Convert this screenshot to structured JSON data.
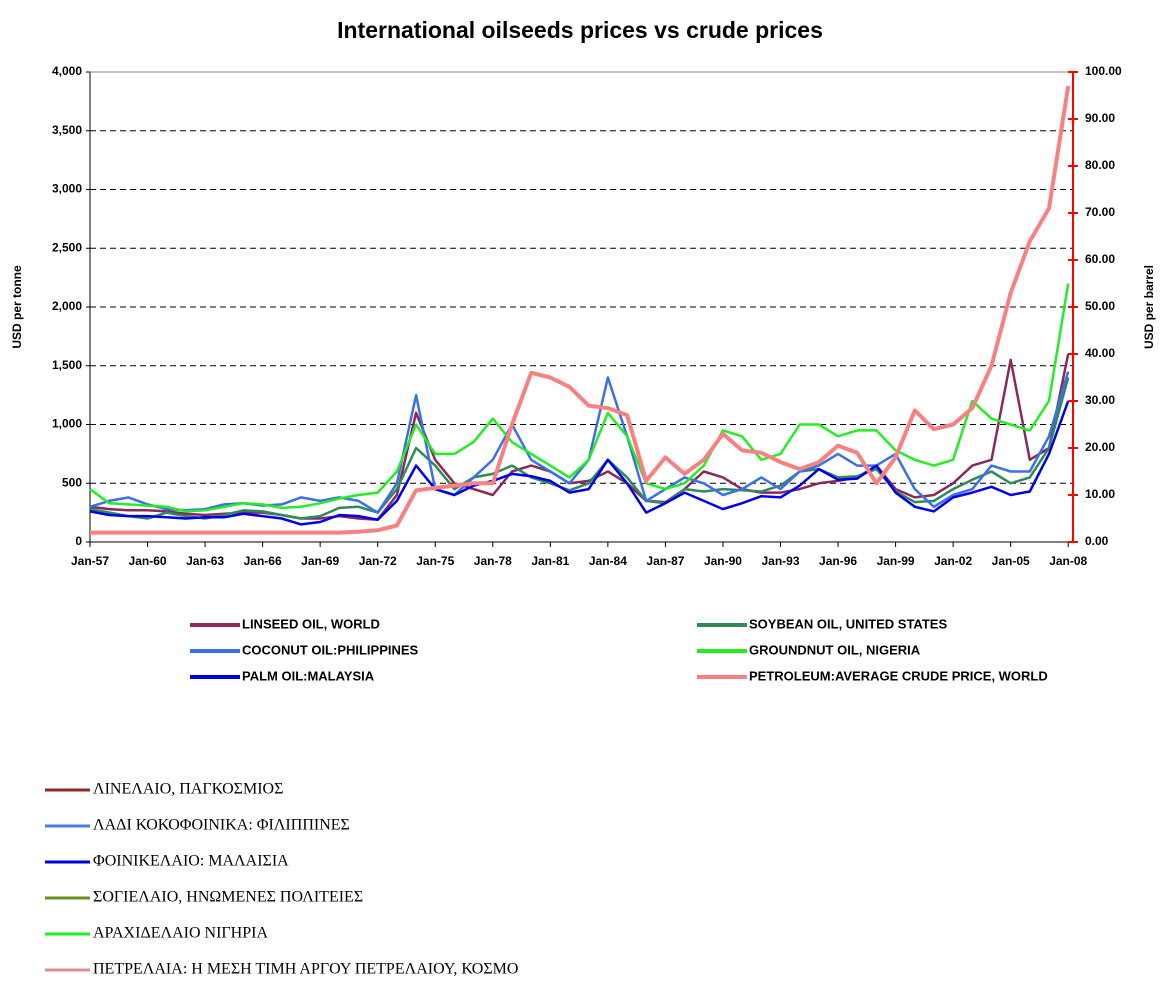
{
  "chart_data": {
    "type": "line",
    "title": "International oilseeds prices vs crude prices",
    "y_label": "USD per tonne",
    "y2_label": "USD per barrel",
    "xlim": [
      1957,
      2008.25
    ],
    "xticks": [
      {
        "value": 1957,
        "label": "Jan-57"
      },
      {
        "value": 1960,
        "label": "Jan-60"
      },
      {
        "value": 1963,
        "label": "Jan-63"
      },
      {
        "value": 1966,
        "label": "Jan-66"
      },
      {
        "value": 1969,
        "label": "Jan-69"
      },
      {
        "value": 1972,
        "label": "Jan-72"
      },
      {
        "value": 1975,
        "label": "Jan-75"
      },
      {
        "value": 1978,
        "label": "Jan-78"
      },
      {
        "value": 1981,
        "label": "Jan-81"
      },
      {
        "value": 1984,
        "label": "Jan-84"
      },
      {
        "value": 1987,
        "label": "Jan-87"
      },
      {
        "value": 1990,
        "label": "Jan-90"
      },
      {
        "value": 1993,
        "label": "Jan-93"
      },
      {
        "value": 1996,
        "label": "Jan-96"
      },
      {
        "value": 1999,
        "label": "Jan-99"
      },
      {
        "value": 2002,
        "label": "Jan-02"
      },
      {
        "value": 2005,
        "label": "Jan-05"
      },
      {
        "value": 2008,
        "label": "Jan-08"
      }
    ],
    "ylim": [
      0,
      4000
    ],
    "yticks": [
      0,
      500,
      {
        "value": 1000,
        "label": "1,000"
      },
      {
        "value": 1500,
        "label": "1,500"
      },
      {
        "value": 2000,
        "label": "2,000"
      },
      {
        "value": 2500,
        "label": "2,500"
      },
      {
        "value": 3000,
        "label": "3,000"
      },
      {
        "value": 3500,
        "label": "3,500"
      },
      {
        "value": 4000,
        "label": "4,000"
      }
    ],
    "y2lim": [
      0,
      100
    ],
    "y2ticks": [
      {
        "value": 0,
        "label": "0.00"
      },
      {
        "value": 10,
        "label": "10.00"
      },
      {
        "value": 20,
        "label": "20.00"
      },
      {
        "value": 30,
        "label": "30.00"
      },
      {
        "value": 40,
        "label": "40.00"
      },
      {
        "value": 50,
        "label": "50.00"
      },
      {
        "value": 60,
        "label": "60.00"
      },
      {
        "value": 70,
        "label": "70.00"
      },
      {
        "value": 80,
        "label": "80.00"
      },
      {
        "value": 90,
        "label": "90.00"
      },
      {
        "value": 100,
        "label": "100.00"
      }
    ],
    "y2_color": "#ff0000",
    "grid": true,
    "x": [
      1957,
      1958,
      1959,
      1960,
      1961,
      1962,
      1963,
      1964,
      1965,
      1966,
      1967,
      1968,
      1969,
      1970,
      1971,
      1972,
      1973,
      1974,
      1975,
      1976,
      1977,
      1978,
      1979,
      1980,
      1981,
      1982,
      1983,
      1984,
      1985,
      1986,
      1987,
      1988,
      1989,
      1990,
      1991,
      1992,
      1993,
      1994,
      1995,
      1996,
      1997,
      1998,
      1999,
      2000,
      2001,
      2002,
      2003,
      2004,
      2005,
      2006,
      2007,
      2008
    ],
    "series": [
      {
        "name": "LINSEED OIL, WORLD",
        "color": "#8b2a5a",
        "values": [
          300,
          280,
          270,
          270,
          260,
          240,
          230,
          240,
          250,
          250,
          230,
          200,
          200,
          220,
          200,
          190,
          400,
          1100,
          700,
          500,
          450,
          400,
          600,
          650,
          600,
          500,
          520,
          600,
          500,
          350,
          340,
          450,
          600,
          550,
          450,
          420,
          420,
          450,
          500,
          520,
          550,
          650,
          450,
          380,
          400,
          500,
          650,
          700,
          1550,
          700,
          800,
          1600
        ]
      },
      {
        "name": "SOYBEAN OIL, UNITED STATES",
        "color": "#2e8b57",
        "values": [
          280,
          250,
          220,
          200,
          250,
          220,
          200,
          230,
          270,
          260,
          230,
          200,
          220,
          290,
          300,
          250,
          450,
          800,
          650,
          450,
          550,
          580,
          650,
          550,
          500,
          440,
          500,
          700,
          550,
          350,
          330,
          450,
          430,
          450,
          440,
          430,
          480,
          600,
          620,
          550,
          560,
          620,
          430,
          340,
          350,
          450,
          530,
          600,
          500,
          550,
          800,
          1400
        ]
      },
      {
        "name": "COCONUT OIL:PHILIPPINES",
        "color": "#3d6fe8",
        "values": [
          300,
          350,
          380,
          320,
          280,
          270,
          280,
          320,
          330,
          310,
          320,
          380,
          350,
          380,
          350,
          250,
          500,
          1250,
          450,
          400,
          550,
          700,
          1000,
          700,
          600,
          500,
          700,
          1400,
          900,
          350,
          450,
          550,
          500,
          400,
          450,
          550,
          450,
          600,
          650,
          750,
          650,
          650,
          750,
          450,
          300,
          400,
          450,
          650,
          600,
          600,
          900,
          1450
        ]
      },
      {
        "name": "GROUNDNUT OIL, NIGERIA",
        "color": "#22ee22",
        "values": [
          450,
          330,
          320,
          310,
          300,
          260,
          270,
          300,
          330,
          320,
          290,
          300,
          330,
          370,
          400,
          420,
          600,
          1000,
          750,
          750,
          850,
          1050,
          850,
          750,
          650,
          550,
          700,
          1100,
          900,
          500,
          450,
          500,
          650,
          950,
          900,
          700,
          750,
          1000,
          1000,
          900,
          950,
          950,
          780,
          700,
          650,
          700,
          1200,
          1050,
          1000,
          950,
          1200,
          2200
        ]
      },
      {
        "name": "PALM OIL:MALAYSIA",
        "color": "#0000ee",
        "values": [
          260,
          230,
          220,
          220,
          210,
          200,
          210,
          210,
          240,
          220,
          200,
          150,
          170,
          230,
          220,
          190,
          350,
          650,
          450,
          400,
          480,
          520,
          580,
          560,
          520,
          420,
          450,
          700,
          500,
          250,
          330,
          420,
          350,
          280,
          330,
          390,
          380,
          480,
          620,
          530,
          540,
          650,
          420,
          300,
          260,
          380,
          420,
          470,
          400,
          430,
          750,
          1200
        ]
      },
      {
        "name": "PETROLEUM:AVERAGE CRUDE PRICE, WORLD",
        "color": "#f88080",
        "axis": "y2",
        "values": [
          2,
          2,
          2,
          2,
          2,
          2,
          2,
          2,
          2,
          2,
          2,
          2,
          2,
          2,
          2.2,
          2.5,
          3.5,
          11,
          11.5,
          12,
          12.5,
          12.5,
          25,
          36,
          35,
          33,
          29,
          28.5,
          27,
          13,
          18,
          14.5,
          17.5,
          23,
          19.5,
          19,
          17,
          15.5,
          17,
          20.5,
          19,
          12.5,
          18,
          28,
          24,
          25,
          28.5,
          37.5,
          53,
          64,
          71,
          97
        ]
      }
    ]
  },
  "notes_legend": [
    {
      "label": "ΛΙΝΕΛΑΙΟ, ΠΑΓΚΟΣΜΙΟΣ",
      "color": "#8b2a2a"
    },
    {
      "label": "ΛΑΔΙ ΚΟΚΟΦΟΙΝΙΚΑ: ΦΙΛΙΠΠΙΝΕΣ",
      "color": "#4a7fd8"
    },
    {
      "label": "ΦΟΙΝΙΚΕΛΑΙΟ: ΜΑΛΑΙΣΙΑ",
      "color": "#0000dd"
    },
    {
      "label": "ΣΟΓΙΕΛΑΙΟ, ΗΝΩΜΕΝΕΣ ΠΟΛΙΤΕΙΕΣ",
      "color": "#6b8e23"
    },
    {
      "label": "ΑΡΑΧΙΔΕΛΑΙΟ ΝΙΓΗΡΙΑ",
      "color": "#22ee22"
    },
    {
      "label": "ΠΕΤΡΕΛΑΙΑ: Η ΜΕΣΗ ΤΙΜΗ ΑΡΓΟΥ ΠΕΤΡΕΛΑΙΟΥ, ΚΟΣΜΟ",
      "color": "#d89090"
    }
  ]
}
